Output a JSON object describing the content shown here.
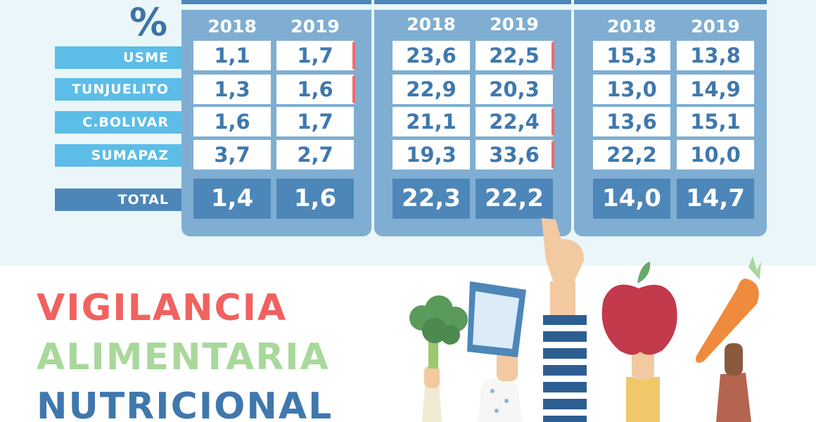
{
  "percent_symbol": "%",
  "years": [
    "2018",
    "2019"
  ],
  "rows": [
    {
      "label": "USME",
      "values": [
        [
          "1,1",
          "1,7"
        ],
        [
          "23,6",
          "22,5"
        ],
        [
          "15,3",
          "13,8"
        ]
      ]
    },
    {
      "label": "TUNJUELITO",
      "values": [
        [
          "1,3",
          "1,6"
        ],
        [
          "22,9",
          "20,3"
        ],
        [
          "13,0",
          "14,9"
        ]
      ]
    },
    {
      "label": "C.BOLIVAR",
      "values": [
        [
          "1,6",
          "1,7"
        ],
        [
          "21,1",
          "22,4"
        ],
        [
          "13,6",
          "15,1"
        ]
      ]
    },
    {
      "label": "SUMAPAZ",
      "values": [
        [
          "3,7",
          "2,7"
        ],
        [
          "19,3",
          "33,6"
        ],
        [
          "22,2",
          "10,0"
        ]
      ]
    }
  ],
  "total": {
    "label": "TOTAL",
    "values": [
      [
        "1,4",
        "1,6"
      ],
      [
        "22,3",
        "22,2"
      ],
      [
        "14,0",
        "14,7"
      ]
    ]
  },
  "title": {
    "line1": "VIGILANCIA",
    "line2": "ALIMENTARIA",
    "line3": "NUTRICIONAL"
  },
  "colors": {
    "panel": "#7faed2",
    "cell_text": "#3f78ad",
    "label_bg": "#5cbde8",
    "total_bg": "#4d86b8",
    "marker": "#ef6a6a"
  },
  "illustration_icons": [
    "broccoli-icon",
    "water-glass-icon",
    "apple-icon",
    "carrot-icon"
  ]
}
